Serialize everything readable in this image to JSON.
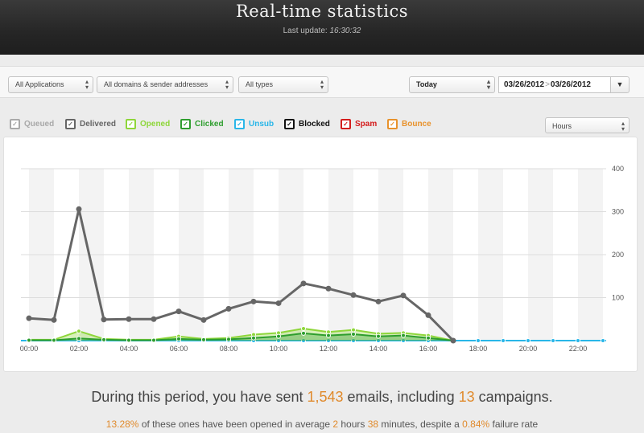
{
  "header": {
    "title": "Real-time statistics",
    "last_update_label": "Last update:",
    "last_update_time": "16:30:32"
  },
  "filters": {
    "applications": "All Applications",
    "domains": "All domains & sender addresses",
    "types": "All types",
    "period": "Today",
    "date_from": "03/26/2012",
    "date_to": "03/26/2012",
    "granularity": "Hours"
  },
  "legend": [
    {
      "label": "Queued",
      "color": "#a9a9a9"
    },
    {
      "label": "Delivered",
      "color": "#666666"
    },
    {
      "label": "Opened",
      "color": "#8ed63a"
    },
    {
      "label": "Clicked",
      "color": "#2e9e2e"
    },
    {
      "label": "Unsub",
      "color": "#29b6e8"
    },
    {
      "label": "Blocked",
      "color": "#111111"
    },
    {
      "label": "Spam",
      "color": "#d41c1c"
    },
    {
      "label": "Bounce",
      "color": "#e8922c"
    }
  ],
  "chart_data": {
    "type": "line",
    "x": [
      "00:00",
      "01:00",
      "02:00",
      "03:00",
      "04:00",
      "05:00",
      "06:00",
      "07:00",
      "08:00",
      "09:00",
      "10:00",
      "11:00",
      "12:00",
      "13:00",
      "14:00",
      "15:00",
      "16:00",
      "17:00",
      "18:00",
      "19:00",
      "20:00",
      "21:00",
      "22:00",
      "23:00"
    ],
    "x_tick_labels": [
      "00:00",
      "02:00",
      "04:00",
      "06:00",
      "08:00",
      "10:00",
      "12:00",
      "14:00",
      "16:00",
      "18:00",
      "20:00",
      "22:00"
    ],
    "y_tick_labels": [
      "100",
      "200",
      "300",
      "400"
    ],
    "ylim": [
      0,
      400
    ],
    "grid": true,
    "series": [
      {
        "name": "Delivered",
        "color": "#666666",
        "values": [
          52,
          48,
          306,
          49,
          50,
          50,
          68,
          48,
          74,
          91,
          87,
          133,
          121,
          106,
          91,
          105,
          59,
          0,
          0,
          0,
          0,
          0,
          0,
          0
        ]
      },
      {
        "name": "Opened",
        "color": "#8ed63a",
        "values": [
          2,
          2,
          22,
          4,
          2,
          2,
          10,
          4,
          6,
          14,
          18,
          28,
          20,
          25,
          16,
          18,
          12,
          0,
          0,
          0,
          0,
          0,
          0,
          0
        ]
      },
      {
        "name": "Clicked",
        "color": "#2e9e2e",
        "values": [
          1,
          1,
          5,
          2,
          1,
          1,
          4,
          2,
          3,
          6,
          10,
          17,
          12,
          15,
          10,
          12,
          6,
          0,
          0,
          0,
          0,
          0,
          0,
          0
        ]
      },
      {
        "name": "Unsub",
        "color": "#29b6e8",
        "values": [
          0,
          0,
          0,
          0,
          0,
          0,
          0,
          0,
          0,
          0,
          0,
          0,
          0,
          0,
          0,
          0,
          0,
          0,
          0,
          0,
          0,
          0,
          0,
          0
        ]
      }
    ]
  },
  "summary": {
    "part1": "During this period, you have sent ",
    "emails": "1,543",
    "part2": " emails, including ",
    "campaigns": "13",
    "part3": " campaigns."
  },
  "detail": {
    "opened_rate": "13.28%",
    "part1": " of these ones have been opened in average ",
    "hours": "2",
    "part2": " hours ",
    "minutes": "38",
    "part3": " minutes, despite a ",
    "failure_rate": "0.84%",
    "part4": " failure rate"
  }
}
